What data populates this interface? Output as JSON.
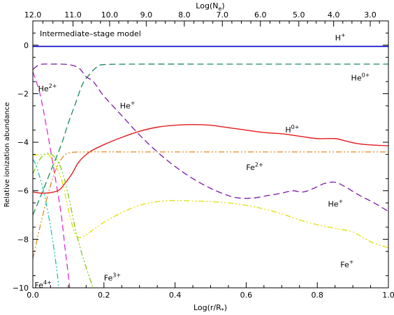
{
  "chart_data": {
    "type": "line",
    "title": "",
    "annotation": "Intermediate–stage model",
    "xlabel": {
      "base": "Log(r/R",
      "sub": "*",
      "close": ")"
    },
    "ylabel": "Relative ionization abundance",
    "top_axis_label": {
      "base": "Log(N",
      "sub": "e",
      "close": ")"
    },
    "xlim": [
      0.0,
      1.0
    ],
    "ylim": [
      -10,
      1
    ],
    "grid": false,
    "x_ticks": [
      0.0,
      0.2,
      0.4,
      0.6,
      0.8,
      1.0
    ],
    "x_tick_labels": [
      "0.0",
      "0.2",
      "0.4",
      "0.6",
      "0.8",
      "1.0"
    ],
    "y_ticks": [
      0,
      -2,
      -4,
      -6,
      -8,
      -10
    ],
    "y_tick_labels": [
      "0",
      "−2",
      "−4",
      "−6",
      "−8",
      "−10"
    ],
    "top_ticks": [
      {
        "label": "12.0",
        "x": 0.0
      },
      {
        "label": "11.0",
        "x": 0.113
      },
      {
        "label": "10.0",
        "x": 0.216
      },
      {
        "label": "9.0",
        "x": 0.319
      },
      {
        "label": "8.0",
        "x": 0.426
      },
      {
        "label": "7.0",
        "x": 0.533
      },
      {
        "label": "6.0",
        "x": 0.64
      },
      {
        "label": "5.0",
        "x": 0.748
      },
      {
        "label": "4.0",
        "x": 0.846
      },
      {
        "label": "3.0",
        "x": 0.949
      }
    ],
    "series": [
      {
        "key": "H+",
        "color": "#0000cc",
        "dash": "",
        "width": 1.6,
        "points": [
          [
            0.0,
            -0.05
          ],
          [
            0.2,
            -0.05
          ],
          [
            0.4,
            -0.05
          ],
          [
            0.6,
            -0.05
          ],
          [
            0.8,
            -0.05
          ],
          [
            1.0,
            -0.05
          ]
        ]
      },
      {
        "key": "He0+",
        "color": "#1a8a5a",
        "dash": "9,5",
        "width": 1.3,
        "points": [
          [
            0.0,
            -7.0
          ],
          [
            0.02,
            -6.3
          ],
          [
            0.05,
            -5.2
          ],
          [
            0.08,
            -4.1
          ],
          [
            0.1,
            -3.2
          ],
          [
            0.12,
            -2.4
          ],
          [
            0.14,
            -1.6
          ],
          [
            0.16,
            -1.2
          ],
          [
            0.18,
            -0.9
          ],
          [
            0.2,
            -0.8
          ],
          [
            0.3,
            -0.78
          ],
          [
            0.5,
            -0.78
          ],
          [
            0.7,
            -0.78
          ],
          [
            0.9,
            -0.78
          ],
          [
            1.0,
            -0.78
          ]
        ]
      },
      {
        "key": "He+",
        "color": "#7a1aa8",
        "dash": "9,5",
        "width": 1.3,
        "points": [
          [
            0.0,
            -1.0
          ],
          [
            0.02,
            -0.8
          ],
          [
            0.05,
            -0.78
          ],
          [
            0.1,
            -0.8
          ],
          [
            0.13,
            -0.95
          ],
          [
            0.15,
            -1.3
          ],
          [
            0.17,
            -1.5
          ],
          [
            0.2,
            -2.1
          ],
          [
            0.25,
            -2.9
          ],
          [
            0.3,
            -3.7
          ],
          [
            0.35,
            -4.4
          ],
          [
            0.4,
            -5.0
          ],
          [
            0.45,
            -5.5
          ],
          [
            0.5,
            -5.9
          ],
          [
            0.55,
            -6.2
          ],
          [
            0.58,
            -6.3
          ],
          [
            0.62,
            -6.3
          ],
          [
            0.66,
            -6.2
          ],
          [
            0.7,
            -6.1
          ],
          [
            0.73,
            -6.0
          ],
          [
            0.76,
            -6.05
          ],
          [
            0.79,
            -5.9
          ],
          [
            0.82,
            -5.7
          ],
          [
            0.85,
            -5.65
          ],
          [
            0.88,
            -5.85
          ],
          [
            0.92,
            -6.2
          ],
          [
            0.96,
            -6.5
          ],
          [
            1.0,
            -6.85
          ]
        ]
      },
      {
        "key": "He2+",
        "color": "#e02ad0",
        "dash": "9,5",
        "width": 1.3,
        "points": [
          [
            0.0,
            -1.1
          ],
          [
            0.02,
            -2.0
          ],
          [
            0.04,
            -3.5
          ],
          [
            0.06,
            -5.2
          ],
          [
            0.08,
            -7.0
          ],
          [
            0.09,
            -8.3
          ],
          [
            0.1,
            -9.5
          ],
          [
            0.105,
            -10.2
          ]
        ]
      },
      {
        "key": "H0+",
        "color": "#e31a1c",
        "dash": "",
        "width": 1.4,
        "points": [
          [
            0.0,
            -6.05
          ],
          [
            0.03,
            -6.1
          ],
          [
            0.07,
            -6.0
          ],
          [
            0.09,
            -5.7
          ],
          [
            0.11,
            -5.3
          ],
          [
            0.13,
            -4.8
          ],
          [
            0.16,
            -4.4
          ],
          [
            0.2,
            -4.1
          ],
          [
            0.25,
            -3.8
          ],
          [
            0.3,
            -3.55
          ],
          [
            0.35,
            -3.38
          ],
          [
            0.4,
            -3.3
          ],
          [
            0.45,
            -3.27
          ],
          [
            0.5,
            -3.3
          ],
          [
            0.55,
            -3.4
          ],
          [
            0.6,
            -3.5
          ],
          [
            0.65,
            -3.6
          ],
          [
            0.7,
            -3.65
          ],
          [
            0.75,
            -3.75
          ],
          [
            0.8,
            -3.85
          ],
          [
            0.85,
            -3.85
          ],
          [
            0.88,
            -3.95
          ],
          [
            0.91,
            -4.05
          ],
          [
            0.94,
            -4.1
          ],
          [
            1.0,
            -4.15
          ]
        ]
      },
      {
        "key": "Fe2+",
        "color": "#e08a1a",
        "dash": "8,3,2,3,2,3",
        "width": 1.3,
        "points": [
          [
            0.0,
            -8.8
          ],
          [
            0.02,
            -7.5
          ],
          [
            0.04,
            -6.3
          ],
          [
            0.06,
            -5.3
          ],
          [
            0.08,
            -4.7
          ],
          [
            0.1,
            -4.45
          ],
          [
            0.15,
            -4.4
          ],
          [
            0.3,
            -4.4
          ],
          [
            0.5,
            -4.4
          ],
          [
            0.7,
            -4.4
          ],
          [
            0.9,
            -4.4
          ],
          [
            1.0,
            -4.4
          ]
        ]
      },
      {
        "key": "Fe+",
        "color": "#e0e000",
        "dash": "8,3,2,3,2,3",
        "width": 1.3,
        "points": [
          [
            0.0,
            -4.55
          ],
          [
            0.03,
            -4.5
          ],
          [
            0.05,
            -4.6
          ],
          [
            0.08,
            -5.5
          ],
          [
            0.1,
            -6.8
          ],
          [
            0.12,
            -7.8
          ],
          [
            0.14,
            -7.9
          ],
          [
            0.17,
            -7.6
          ],
          [
            0.2,
            -7.3
          ],
          [
            0.25,
            -6.9
          ],
          [
            0.3,
            -6.6
          ],
          [
            0.35,
            -6.45
          ],
          [
            0.4,
            -6.4
          ],
          [
            0.45,
            -6.42
          ],
          [
            0.5,
            -6.45
          ],
          [
            0.55,
            -6.5
          ],
          [
            0.6,
            -6.6
          ],
          [
            0.65,
            -6.75
          ],
          [
            0.7,
            -6.95
          ],
          [
            0.75,
            -7.2
          ],
          [
            0.8,
            -7.4
          ],
          [
            0.85,
            -7.55
          ],
          [
            0.9,
            -7.7
          ],
          [
            0.95,
            -8.1
          ],
          [
            1.0,
            -8.35
          ]
        ]
      },
      {
        "key": "Fe3+",
        "color": "#7acc1a",
        "dash": "8,3,2,3,2,3",
        "width": 1.3,
        "points": [
          [
            0.0,
            -5.3
          ],
          [
            0.02,
            -4.7
          ],
          [
            0.04,
            -4.45
          ],
          [
            0.06,
            -4.6
          ],
          [
            0.08,
            -5.1
          ],
          [
            0.1,
            -6.2
          ],
          [
            0.12,
            -7.6
          ],
          [
            0.14,
            -8.7
          ],
          [
            0.16,
            -9.6
          ],
          [
            0.175,
            -10.2
          ]
        ]
      },
      {
        "key": "Fe4+",
        "color": "#1ac8a8",
        "dash": "8,3,2,3,2,3",
        "width": 1.3,
        "points": [
          [
            0.0,
            -4.7
          ],
          [
            0.01,
            -5.0
          ],
          [
            0.03,
            -6.0
          ],
          [
            0.05,
            -7.5
          ],
          [
            0.065,
            -9.0
          ],
          [
            0.075,
            -10.2
          ]
        ]
      }
    ],
    "labels": [
      {
        "key": "H+",
        "base": "H",
        "sup": "+",
        "x": 0.85,
        "y": 0.2
      },
      {
        "key": "He0+",
        "base": "He",
        "sup": "0+",
        "x": 0.895,
        "y": -1.45
      },
      {
        "key": "He+",
        "base": "He",
        "sup": "+",
        "x": 0.245,
        "y": -2.6
      },
      {
        "key": "He2+",
        "base": "He",
        "sup": "2+",
        "x": 0.015,
        "y": -1.9
      },
      {
        "key": "H0+",
        "base": "H",
        "sup": "0+",
        "x": 0.71,
        "y": -3.6
      },
      {
        "key": "Fe2+",
        "base": "Fe",
        "sup": "2+",
        "x": 0.6,
        "y": -5.15
      },
      {
        "key": "He+",
        "base": "He",
        "sup": "+",
        "x": 0.83,
        "y": -6.65
      },
      {
        "key": "Fe+",
        "base": "Fe",
        "sup": "+",
        "x": 0.865,
        "y": -9.15
      },
      {
        "key": "Fe3+",
        "base": "Fe",
        "sup": "3+",
        "x": 0.2,
        "y": -9.7
      },
      {
        "key": "Fe4+",
        "base": "Fe",
        "sup": "4+",
        "x": 0.005,
        "y": -10.0
      }
    ]
  }
}
